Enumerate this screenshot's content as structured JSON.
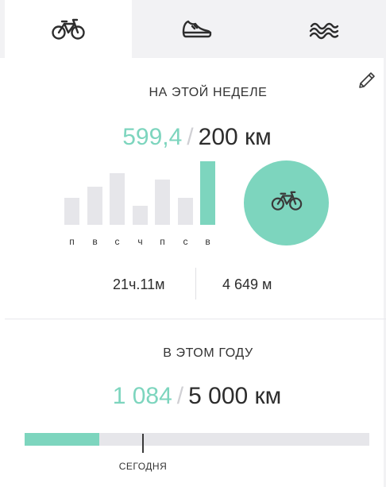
{
  "tabs": [
    {
      "icon": "bicycle-icon",
      "active": true
    },
    {
      "icon": "running-shoe-icon",
      "active": false
    },
    {
      "icon": "waves-icon",
      "active": false
    }
  ],
  "colors": {
    "accent": "#7dd5be",
    "bar_inactive": "#e6e6ea",
    "tab_bg": "#f2f2f4",
    "text": "#2d2d2d"
  },
  "week": {
    "title": "НА ЭТОЙ НЕДЕЛЕ",
    "done": "599,4",
    "separator": "/",
    "target": "200 км",
    "days": [
      {
        "label": "п",
        "level": 0.43
      },
      {
        "label": "в",
        "level": 0.6
      },
      {
        "label": "с",
        "level": 0.81
      },
      {
        "label": "ч",
        "level": 0.3
      },
      {
        "label": "п",
        "level": 0.71
      },
      {
        "label": "с",
        "level": 0.43
      },
      {
        "label": "в",
        "level": 1.0,
        "today": true
      }
    ],
    "time": "21ч.11м",
    "elevation": "4 649 м"
  },
  "year": {
    "title": "В ЭТОМ ГОДУ",
    "done": "1 084",
    "separator": "/",
    "target": "5 000 км",
    "progress": 0.2168,
    "today_position": 0.34,
    "today_label": "СЕГОДНЯ"
  }
}
